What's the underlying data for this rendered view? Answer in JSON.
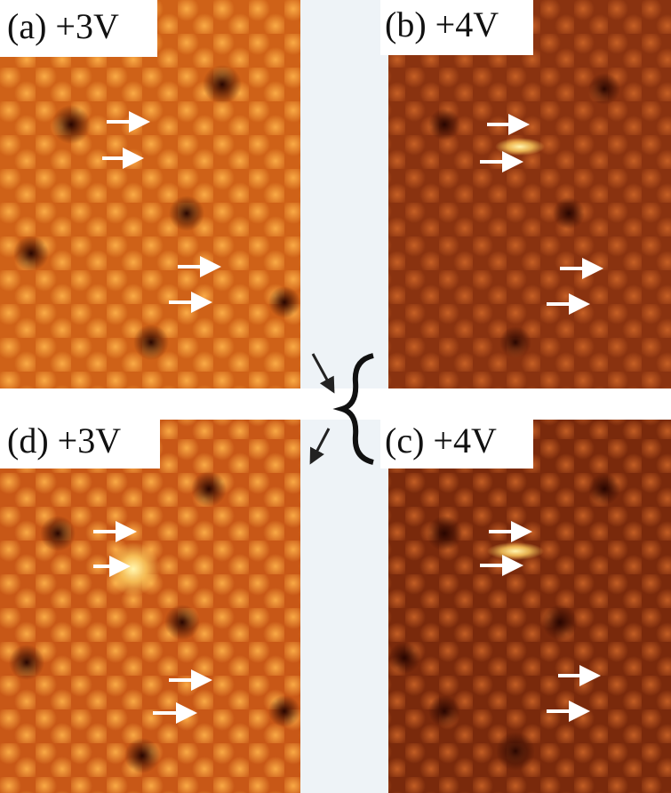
{
  "panels": [
    {
      "label": "(a) +3V"
    },
    {
      "label": "(b) +4V"
    },
    {
      "label": "(d) +3V"
    },
    {
      "label": "(c) +4V"
    }
  ]
}
